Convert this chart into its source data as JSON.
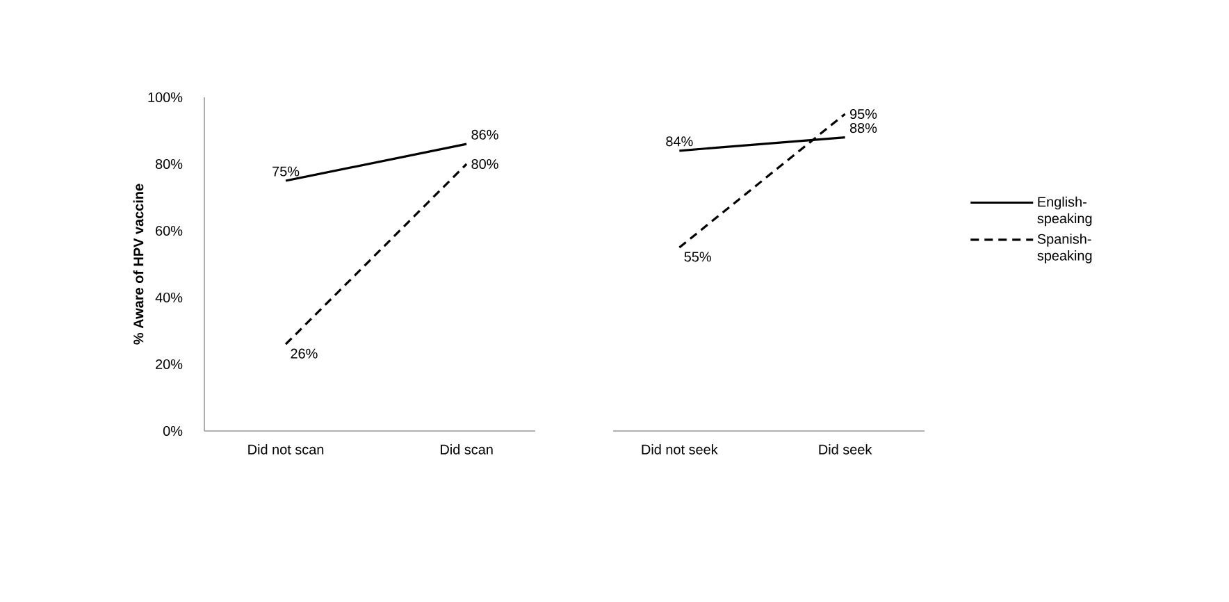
{
  "chart_data": [
    {
      "type": "line",
      "ylabel": "% Aware of HPV vaccine",
      "categories": [
        "Did not scan",
        "Did scan"
      ],
      "ylim": [
        0,
        100
      ],
      "yticks": [
        {
          "value": 0,
          "label": "0%"
        },
        {
          "value": 20,
          "label": "20%"
        },
        {
          "value": 40,
          "label": "40%"
        },
        {
          "value": 60,
          "label": "60%"
        },
        {
          "value": 80,
          "label": "80%"
        },
        {
          "value": 100,
          "label": "100%"
        }
      ],
      "series": [
        {
          "color": "#000000",
          "line_style": "solid",
          "values": [
            75,
            86
          ],
          "value_labels": [
            "75%",
            "86%"
          ]
        },
        {
          "color": "#000000",
          "line_style": "dashed",
          "values": [
            26,
            80
          ],
          "value_labels": [
            "26%",
            "80%"
          ]
        }
      ]
    },
    {
      "type": "line",
      "categories": [
        "Did not seek",
        "Did seek"
      ],
      "ylim": [
        0,
        100
      ],
      "tick_labels": "x",
      "legend": "right",
      "series": [
        {
          "name": "English-speaking",
          "color": "#000000",
          "line_style": "solid",
          "values": [
            84,
            88
          ],
          "value_labels": [
            "84%",
            "88%"
          ]
        },
        {
          "name": "Spanish-speaking",
          "color": "#000000",
          "line_style": "dashed",
          "values": [
            55,
            95
          ],
          "value_labels": [
            "55%",
            "95%"
          ]
        }
      ]
    }
  ]
}
